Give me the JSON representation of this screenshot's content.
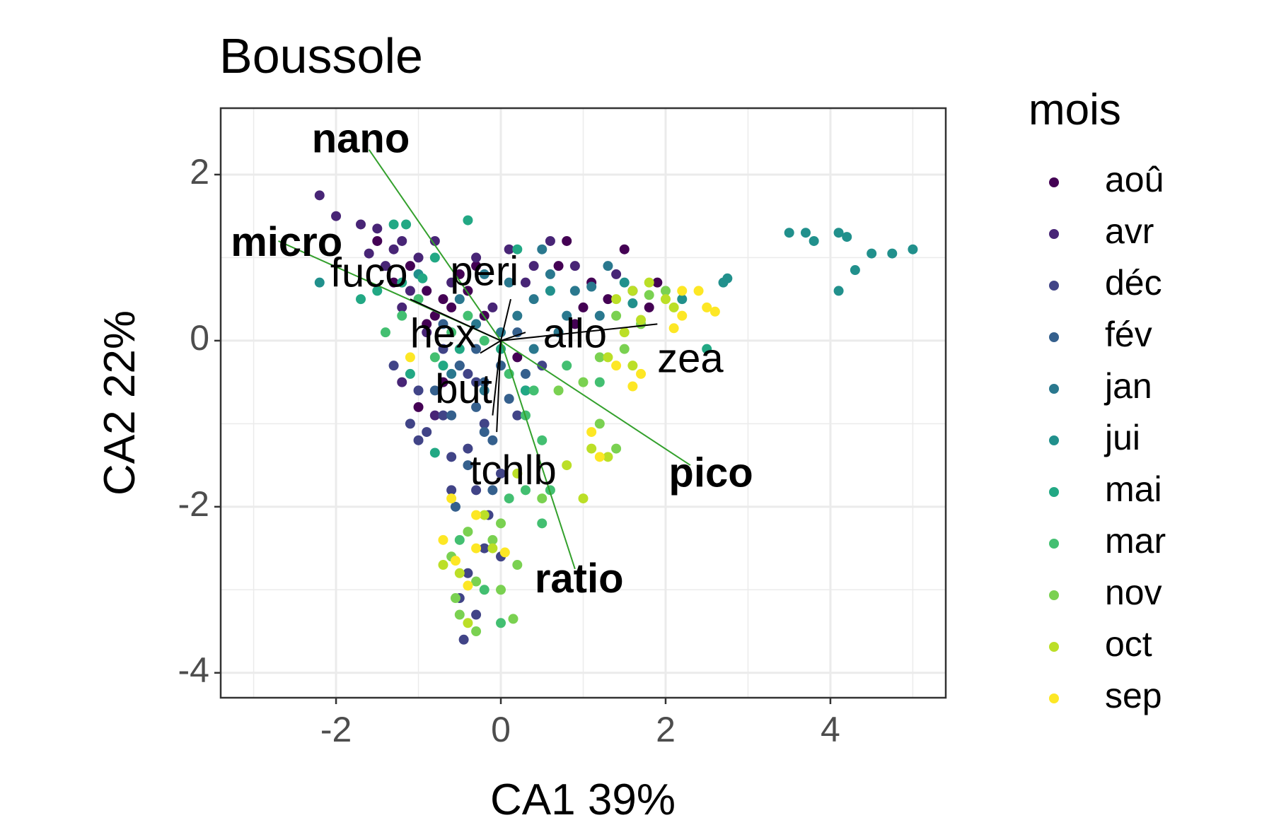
{
  "chart_data": {
    "type": "scatter",
    "title": "Boussole",
    "xlabel": "CA1 39%",
    "ylabel": "CA2 22%",
    "xlim": [
      -3.4,
      5.4
    ],
    "ylim": [
      -4.3,
      2.8
    ],
    "x_ticks": [
      -2,
      0,
      2,
      4
    ],
    "y_ticks": [
      2,
      0,
      -2,
      -4
    ],
    "x_tick_labels": [
      "-2",
      "0",
      "2",
      "4"
    ],
    "y_tick_labels": [
      "2",
      "0",
      "-2",
      "-4"
    ],
    "grid": true,
    "legend": {
      "title": "mois",
      "position": "right",
      "entries": [
        {
          "label": "aoû",
          "color": "#440154"
        },
        {
          "label": "avr",
          "color": "#482576"
        },
        {
          "label": "déc",
          "color": "#414487"
        },
        {
          "label": "fév",
          "color": "#35608D"
        },
        {
          "label": "jan",
          "color": "#2A788E"
        },
        {
          "label": "jui",
          "color": "#21908C"
        },
        {
          "label": "mai",
          "color": "#22A884"
        },
        {
          "label": "mar",
          "color": "#43BF71"
        },
        {
          "label": "nov",
          "color": "#7AD151"
        },
        {
          "label": "oct",
          "color": "#BBDF27"
        },
        {
          "label": "sep",
          "color": "#FDE725"
        }
      ]
    },
    "variables": [
      {
        "label": "nano",
        "x": -1.6,
        "y": 2.3,
        "text_x": -1.7,
        "text_y": 2.4,
        "group": "size",
        "bold": true,
        "color": "#33a02c"
      },
      {
        "label": "micro",
        "x": -2.7,
        "y": 1.2,
        "text_x": -2.6,
        "text_y": 1.15,
        "group": "size",
        "bold": true,
        "color": "#33a02c"
      },
      {
        "label": "pico",
        "x": 2.3,
        "y": -1.5,
        "text_x": 2.55,
        "text_y": -1.63,
        "group": "size",
        "bold": true,
        "color": "#33a02c"
      },
      {
        "label": "ratio",
        "x": 0.9,
        "y": -2.75,
        "text_x": 0.95,
        "text_y": -2.9,
        "group": "size",
        "bold": true,
        "color": "#33a02c"
      },
      {
        "label": "fuco",
        "x": -1.1,
        "y": 0.5,
        "text_x": -1.6,
        "text_y": 0.78,
        "group": "pigment",
        "bold": false,
        "color": "#000000"
      },
      {
        "label": "peri",
        "x": 0.12,
        "y": 0.5,
        "text_x": -0.2,
        "text_y": 0.8,
        "group": "pigment",
        "bold": false,
        "color": "#000000"
      },
      {
        "label": "hex",
        "x": -0.25,
        "y": -0.15,
        "text_x": -0.7,
        "text_y": 0.05,
        "group": "pigment",
        "bold": false,
        "color": "#000000"
      },
      {
        "label": "allo",
        "x": 0.3,
        "y": 0.1,
        "text_x": 0.9,
        "text_y": 0.05,
        "group": "pigment",
        "bold": false,
        "color": "#000000"
      },
      {
        "label": "zea",
        "x": 1.9,
        "y": 0.2,
        "text_x": 2.3,
        "text_y": -0.25,
        "group": "pigment",
        "bold": false,
        "color": "#000000"
      },
      {
        "label": "but",
        "x": -0.1,
        "y": -0.9,
        "text_x": -0.45,
        "text_y": -0.62,
        "group": "pigment",
        "bold": false,
        "color": "#000000"
      },
      {
        "label": "tchlb",
        "x": -0.05,
        "y": -1.1,
        "text_x": 0.15,
        "text_y": -1.6,
        "group": "pigment",
        "bold": false,
        "color": "#000000"
      }
    ],
    "series": [
      {
        "name": "aoû",
        "points": [
          [
            -0.9,
            0.6
          ],
          [
            -0.7,
            0.5
          ],
          [
            -0.5,
            0.8
          ],
          [
            -1.1,
            0.9
          ],
          [
            -0.8,
            0.3
          ],
          [
            -0.6,
            0.4
          ],
          [
            -1.3,
            0.7
          ],
          [
            -0.4,
            0.6
          ],
          [
            -0.9,
            0.2
          ],
          [
            -0.3,
            0.9
          ],
          [
            0.8,
            1.2
          ],
          [
            1.1,
            0.7
          ],
          [
            0.7,
            0.9
          ],
          [
            1.3,
            0.5
          ],
          [
            1.6,
            0.6
          ],
          [
            1.8,
            0.4
          ],
          [
            1.5,
            1.1
          ],
          [
            0.9,
            0.2
          ],
          [
            -1.0,
            -0.8
          ],
          [
            -0.7,
            -0.5
          ],
          [
            0.2,
            -0.2
          ],
          [
            -1.5,
            1.2
          ],
          [
            -0.2,
            0.3
          ],
          [
            1.0,
            0.4
          ],
          [
            1.9,
            0.7
          ]
        ]
      },
      {
        "name": "avr",
        "points": [
          [
            -2.2,
            1.75
          ],
          [
            -2.0,
            1.5
          ],
          [
            -1.7,
            1.4
          ],
          [
            -1.5,
            1.35
          ],
          [
            -1.3,
            1.1
          ],
          [
            -1.4,
            0.9
          ],
          [
            -1.2,
            1.2
          ],
          [
            -1.0,
            1.0
          ],
          [
            -1.6,
            1.05
          ],
          [
            -1.1,
            0.6
          ],
          [
            -0.8,
            1.2
          ],
          [
            -0.6,
            0.7
          ],
          [
            -0.3,
            1.0
          ],
          [
            0.1,
            1.1
          ],
          [
            0.4,
            0.9
          ],
          [
            0.6,
            1.2
          ],
          [
            0.3,
            0.7
          ],
          [
            -0.9,
            0.1
          ],
          [
            -1.2,
            0.4
          ],
          [
            -0.5,
            -0.3
          ],
          [
            -0.1,
            0.4
          ],
          [
            0.9,
            0.9
          ],
          [
            1.4,
            0.8
          ],
          [
            -1.2,
            -0.5
          ],
          [
            -0.8,
            -0.9
          ]
        ]
      },
      {
        "name": "déc",
        "points": [
          [
            -1.3,
            -0.3
          ],
          [
            -1.0,
            -0.6
          ],
          [
            -0.7,
            -0.9
          ],
          [
            -0.4,
            -1.3
          ],
          [
            -0.6,
            -1.4
          ],
          [
            -0.2,
            -1.0
          ],
          [
            -0.3,
            -1.8
          ],
          [
            -0.6,
            -1.8
          ],
          [
            -0.4,
            -2.8
          ],
          [
            -0.5,
            -3.1
          ],
          [
            -0.3,
            -3.3
          ],
          [
            -0.45,
            -3.6
          ],
          [
            -0.2,
            -2.5
          ],
          [
            0.0,
            -1.6
          ],
          [
            -1.1,
            -1.0
          ],
          [
            -0.9,
            -1.1
          ],
          [
            -0.3,
            -0.5
          ],
          [
            0.3,
            -0.6
          ],
          [
            0.5,
            -0.3
          ],
          [
            0.2,
            -0.9
          ],
          [
            -1.0,
            -1.2
          ],
          [
            -0.7,
            -0.1
          ],
          [
            -0.4,
            -0.4
          ],
          [
            -0.15,
            -2.1
          ],
          [
            0.0,
            -2.6
          ]
        ]
      },
      {
        "name": "fév",
        "points": [
          [
            -0.8,
            -0.6
          ],
          [
            -0.5,
            -0.3
          ],
          [
            -0.3,
            -0.8
          ],
          [
            -0.1,
            -1.2
          ],
          [
            -0.2,
            -0.5
          ],
          [
            0.1,
            -0.7
          ],
          [
            0.3,
            -0.4
          ],
          [
            -0.6,
            -0.9
          ],
          [
            -0.4,
            -1.5
          ],
          [
            -0.2,
            -1.1
          ],
          [
            -0.3,
            -0.1
          ],
          [
            0.0,
            -0.3
          ],
          [
            0.2,
            0.1
          ],
          [
            -0.7,
            0.2
          ],
          [
            -0.1,
            -1.8
          ],
          [
            -0.55,
            -2.0
          ]
        ]
      },
      {
        "name": "jan",
        "points": [
          [
            -0.5,
            0.5
          ],
          [
            -0.2,
            0.8
          ],
          [
            0.1,
            0.7
          ],
          [
            0.4,
            0.5
          ],
          [
            0.6,
            0.8
          ],
          [
            0.9,
            0.6
          ],
          [
            1.1,
            0.65
          ],
          [
            1.3,
            0.9
          ],
          [
            0.5,
            1.1
          ],
          [
            0.2,
            0.3
          ],
          [
            -0.3,
            0.2
          ],
          [
            0.8,
            0.3
          ],
          [
            1.2,
            0.3
          ],
          [
            0.4,
            -0.1
          ],
          [
            0.7,
            0.1
          ],
          [
            -0.6,
            -0.4
          ],
          [
            -0.2,
            -0.6
          ],
          [
            0.0,
            0.1
          ]
        ]
      },
      {
        "name": "jui",
        "points": [
          [
            3.5,
            1.3
          ],
          [
            3.7,
            1.3
          ],
          [
            3.8,
            1.2
          ],
          [
            4.1,
            1.3
          ],
          [
            4.2,
            1.25
          ],
          [
            4.5,
            1.05
          ],
          [
            4.75,
            1.05
          ],
          [
            5.0,
            1.1
          ],
          [
            4.3,
            0.85
          ],
          [
            4.1,
            0.6
          ],
          [
            2.7,
            0.7
          ],
          [
            2.75,
            0.75
          ],
          [
            -2.2,
            0.7
          ],
          [
            1.5,
            0.7
          ],
          [
            1.6,
            0.45
          ],
          [
            2.2,
            0.5
          ],
          [
            -1.0,
            0.8
          ],
          [
            0.6,
            0.6
          ]
        ]
      },
      {
        "name": "mai",
        "points": [
          [
            -1.7,
            0.5
          ],
          [
            -1.5,
            0.6
          ],
          [
            -1.2,
            0.7
          ],
          [
            -1.3,
            1.4
          ],
          [
            -1.15,
            1.4
          ],
          [
            -0.8,
            1.0
          ],
          [
            -0.4,
            1.45
          ],
          [
            0.2,
            1.1
          ],
          [
            -0.95,
            0.75
          ],
          [
            -0.7,
            -0.3
          ],
          [
            -1.1,
            -0.4
          ],
          [
            -0.5,
            -0.1
          ],
          [
            2.5,
            -0.1
          ],
          [
            0.3,
            -0.6
          ],
          [
            -0.8,
            -1.35
          ],
          [
            0.0,
            -0.1
          ]
        ]
      },
      {
        "name": "mar",
        "points": [
          [
            -1.4,
            0.1
          ],
          [
            -1.2,
            0.3
          ],
          [
            -1.0,
            0.5
          ],
          [
            -0.8,
            -0.2
          ],
          [
            -0.6,
            0.1
          ],
          [
            -0.4,
            0.3
          ],
          [
            -0.2,
            0.0
          ],
          [
            0.1,
            -0.4
          ],
          [
            0.3,
            -0.9
          ],
          [
            0.5,
            -1.2
          ],
          [
            0.1,
            -1.9
          ],
          [
            0.3,
            -1.8
          ],
          [
            0.5,
            -2.2
          ],
          [
            -0.5,
            -2.4
          ],
          [
            -0.2,
            -3.0
          ],
          [
            0.0,
            -3.4
          ],
          [
            0.6,
            -1.8
          ],
          [
            0.4,
            -0.6
          ],
          [
            0.8,
            -0.3
          ],
          [
            1.2,
            -0.5
          ]
        ]
      },
      {
        "name": "nov",
        "points": [
          [
            0.7,
            -0.6
          ],
          [
            1.0,
            -0.5
          ],
          [
            1.2,
            -0.2
          ],
          [
            1.5,
            -0.1
          ],
          [
            1.7,
            0.2
          ],
          [
            1.4,
            0.3
          ],
          [
            1.8,
            0.55
          ],
          [
            2.0,
            0.6
          ],
          [
            -0.4,
            -2.3
          ],
          [
            -0.6,
            -2.6
          ],
          [
            -0.3,
            -2.9
          ],
          [
            0.0,
            -3.0
          ],
          [
            0.2,
            -2.7
          ],
          [
            -0.5,
            -3.3
          ],
          [
            -0.3,
            -3.5
          ],
          [
            -0.55,
            -3.1
          ],
          [
            0.15,
            -3.35
          ],
          [
            0.0,
            -2.2
          ],
          [
            -0.1,
            -2.4
          ],
          [
            0.5,
            -1.9
          ],
          [
            1.2,
            -1.0
          ],
          [
            1.4,
            -1.3
          ]
        ]
      },
      {
        "name": "oct",
        "points": [
          [
            1.4,
            0.5
          ],
          [
            1.6,
            0.6
          ],
          [
            1.8,
            0.7
          ],
          [
            2.0,
            0.5
          ],
          [
            2.1,
            0.4
          ],
          [
            1.5,
            0.1
          ],
          [
            1.7,
            0.25
          ],
          [
            1.3,
            -0.2
          ],
          [
            1.6,
            -0.3
          ],
          [
            0.8,
            -1.5
          ],
          [
            1.1,
            -1.3
          ],
          [
            -0.7,
            -2.7
          ],
          [
            -0.5,
            -2.8
          ],
          [
            -0.4,
            -3.4
          ],
          [
            -0.2,
            -2.1
          ],
          [
            -0.1,
            -2.5
          ],
          [
            0.2,
            -1.6
          ],
          [
            1.0,
            -1.9
          ],
          [
            1.3,
            -1.4
          ]
        ]
      },
      {
        "name": "sep",
        "points": [
          [
            2.2,
            0.6
          ],
          [
            2.4,
            0.6
          ],
          [
            2.5,
            0.4
          ],
          [
            2.6,
            0.35
          ],
          [
            2.2,
            0.3
          ],
          [
            2.1,
            0.15
          ],
          [
            1.7,
            -0.4
          ],
          [
            1.6,
            -0.55
          ],
          [
            1.4,
            -0.3
          ],
          [
            1.1,
            -1.1
          ],
          [
            1.2,
            -1.4
          ],
          [
            -1.1,
            -0.2
          ],
          [
            -0.6,
            -1.9
          ],
          [
            -0.3,
            -2.1
          ],
          [
            -0.7,
            -2.4
          ],
          [
            -0.55,
            -2.65
          ],
          [
            -0.4,
            -2.95
          ],
          [
            -0.3,
            -2.5
          ],
          [
            0.05,
            -2.55
          ]
        ]
      }
    ]
  }
}
